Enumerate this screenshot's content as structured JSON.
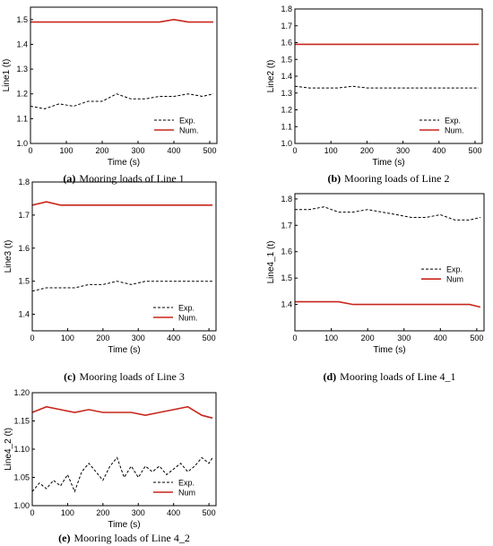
{
  "chart_data": [
    {
      "type": "line",
      "caption_letter": "(a)",
      "caption_text": "Mooring loads of Line 1",
      "xlabel": "Time (s)",
      "ylabel": "Line1 (t)",
      "xlim": [
        0,
        520
      ],
      "ylim": [
        1.0,
        1.55
      ],
      "xticks": [
        0,
        100,
        200,
        300,
        400,
        500
      ],
      "yticks": [
        1.0,
        1.1,
        1.2,
        1.3,
        1.4,
        1.5
      ],
      "ytick_labels": [
        "1.0",
        "1.1",
        "1.2",
        "1.3",
        "1.4",
        "1.5"
      ],
      "legend": "lower-right",
      "series": [
        {
          "name": "Exp.",
          "style": "dashed",
          "color": "#000000",
          "x": [
            0,
            40,
            80,
            120,
            160,
            200,
            240,
            280,
            320,
            360,
            400,
            440,
            480,
            510
          ],
          "y": [
            1.15,
            1.14,
            1.16,
            1.15,
            1.17,
            1.17,
            1.2,
            1.18,
            1.18,
            1.19,
            1.19,
            1.2,
            1.19,
            1.2
          ]
        },
        {
          "name": "Num.",
          "style": "solid",
          "color": "#c8261c",
          "x": [
            0,
            40,
            80,
            120,
            160,
            200,
            240,
            280,
            320,
            360,
            400,
            440,
            480,
            510
          ],
          "y": [
            1.49,
            1.49,
            1.49,
            1.49,
            1.49,
            1.49,
            1.49,
            1.49,
            1.49,
            1.49,
            1.5,
            1.49,
            1.49,
            1.49
          ]
        }
      ]
    },
    {
      "type": "line",
      "caption_letter": "(b)",
      "caption_text": "Mooring loads of Line 2",
      "xlabel": "Time (s)",
      "ylabel": "Line2 (t)",
      "xlim": [
        0,
        520
      ],
      "ylim": [
        1.0,
        1.8
      ],
      "xticks": [
        0,
        100,
        200,
        300,
        400,
        500
      ],
      "yticks": [
        1.0,
        1.1,
        1.2,
        1.3,
        1.4,
        1.5,
        1.6,
        1.7,
        1.8
      ],
      "ytick_labels": [
        "1.0",
        "1.1",
        "1.2",
        "1.3",
        "1.4",
        "1.5",
        "1.6",
        "1.7",
        "1.8"
      ],
      "legend": "lower-right",
      "series": [
        {
          "name": "Exp.",
          "style": "dashed",
          "color": "#000000",
          "x": [
            0,
            40,
            80,
            120,
            160,
            200,
            240,
            280,
            320,
            360,
            400,
            440,
            480,
            510
          ],
          "y": [
            1.34,
            1.33,
            1.33,
            1.33,
            1.34,
            1.33,
            1.33,
            1.33,
            1.33,
            1.33,
            1.33,
            1.33,
            1.33,
            1.33
          ]
        },
        {
          "name": "Num.",
          "style": "solid",
          "color": "#c8261c",
          "x": [
            0,
            40,
            80,
            120,
            160,
            200,
            240,
            280,
            320,
            360,
            400,
            440,
            480,
            510
          ],
          "y": [
            1.59,
            1.59,
            1.59,
            1.59,
            1.59,
            1.59,
            1.59,
            1.59,
            1.59,
            1.59,
            1.59,
            1.59,
            1.59,
            1.59
          ]
        }
      ]
    },
    {
      "type": "line",
      "caption_letter": "(c)",
      "caption_text": "Mooring loads of Line 3",
      "xlabel": "Time (s)",
      "ylabel": "Line3 (t)",
      "xlim": [
        0,
        520
      ],
      "ylim": [
        1.35,
        1.8
      ],
      "xticks": [
        0,
        100,
        200,
        300,
        400,
        500
      ],
      "yticks": [
        1.4,
        1.5,
        1.6,
        1.7,
        1.8
      ],
      "ytick_labels": [
        "1.4",
        "1.5",
        "1.6",
        "1.7",
        "1.8"
      ],
      "legend": "lower-right",
      "series": [
        {
          "name": "Exp.",
          "style": "dashed",
          "color": "#000000",
          "x": [
            0,
            40,
            80,
            120,
            160,
            200,
            240,
            280,
            320,
            360,
            400,
            440,
            480,
            510
          ],
          "y": [
            1.47,
            1.48,
            1.48,
            1.48,
            1.49,
            1.49,
            1.5,
            1.49,
            1.5,
            1.5,
            1.5,
            1.5,
            1.5,
            1.5
          ]
        },
        {
          "name": "Num.",
          "style": "solid",
          "color": "#c8261c",
          "x": [
            0,
            40,
            80,
            120,
            160,
            200,
            240,
            280,
            320,
            360,
            400,
            440,
            480,
            510
          ],
          "y": [
            1.73,
            1.74,
            1.73,
            1.73,
            1.73,
            1.73,
            1.73,
            1.73,
            1.73,
            1.73,
            1.73,
            1.73,
            1.73,
            1.73
          ]
        }
      ]
    },
    {
      "type": "line",
      "caption_letter": "(d)",
      "caption_text": "Mooring loads of Line 4_1",
      "xlabel": "Time (s)",
      "ylabel": "Line4_1 (t)",
      "xlim": [
        0,
        520
      ],
      "ylim": [
        1.3,
        1.82
      ],
      "xticks": [
        0,
        100,
        200,
        300,
        400,
        500
      ],
      "yticks": [
        1.4,
        1.5,
        1.6,
        1.7,
        1.8
      ],
      "ytick_labels": [
        "1.4",
        "1.5",
        "1.6",
        "1.7",
        "1.8"
      ],
      "legend": "center-right",
      "series": [
        {
          "name": "Exp.",
          "style": "dashed",
          "color": "#000000",
          "x": [
            0,
            40,
            80,
            120,
            160,
            200,
            240,
            280,
            320,
            360,
            400,
            440,
            480,
            510
          ],
          "y": [
            1.76,
            1.76,
            1.77,
            1.75,
            1.75,
            1.76,
            1.75,
            1.74,
            1.73,
            1.73,
            1.74,
            1.72,
            1.72,
            1.73
          ]
        },
        {
          "name": "Num",
          "style": "solid",
          "color": "#c8261c",
          "x": [
            0,
            40,
            80,
            120,
            160,
            200,
            240,
            280,
            320,
            360,
            400,
            440,
            480,
            510
          ],
          "y": [
            1.41,
            1.41,
            1.41,
            1.41,
            1.4,
            1.4,
            1.4,
            1.4,
            1.4,
            1.4,
            1.4,
            1.4,
            1.4,
            1.39
          ]
        }
      ]
    },
    {
      "type": "line",
      "caption_letter": "(e)",
      "caption_text": "Mooring loads of Line 4_2",
      "xlabel": "Time (s)",
      "ylabel": "Line4_2 (t)",
      "xlim": [
        0,
        520
      ],
      "ylim": [
        1.0,
        1.2
      ],
      "xticks": [
        0,
        100,
        200,
        300,
        400,
        500
      ],
      "yticks": [
        1.0,
        1.05,
        1.1,
        1.15,
        1.2
      ],
      "ytick_labels": [
        "1.00",
        "1.05",
        "1.10",
        "1.15",
        "1.20"
      ],
      "legend": "lower-right",
      "series": [
        {
          "name": "Exp.",
          "style": "dashed",
          "color": "#000000",
          "x": [
            0,
            20,
            40,
            60,
            80,
            100,
            120,
            140,
            160,
            180,
            200,
            220,
            240,
            260,
            280,
            300,
            320,
            340,
            360,
            380,
            400,
            420,
            440,
            460,
            480,
            500,
            510
          ],
          "y": [
            1.025,
            1.04,
            1.03,
            1.045,
            1.035,
            1.055,
            1.025,
            1.06,
            1.075,
            1.06,
            1.045,
            1.07,
            1.085,
            1.05,
            1.07,
            1.05,
            1.07,
            1.06,
            1.07,
            1.055,
            1.065,
            1.075,
            1.06,
            1.07,
            1.085,
            1.075,
            1.085
          ]
        },
        {
          "name": "Num",
          "style": "solid",
          "color": "#c8261c",
          "x": [
            0,
            40,
            80,
            120,
            160,
            200,
            240,
            280,
            320,
            360,
            400,
            440,
            480,
            510
          ],
          "y": [
            1.165,
            1.175,
            1.17,
            1.165,
            1.17,
            1.165,
            1.165,
            1.165,
            1.16,
            1.165,
            1.17,
            1.175,
            1.16,
            1.155
          ]
        }
      ]
    }
  ]
}
